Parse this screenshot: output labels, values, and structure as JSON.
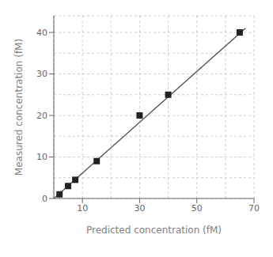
{
  "chart_data": {
    "type": "scatter",
    "xlabel": "Predicted concentration (fM)",
    "ylabel": "Measured concentration (fM)",
    "xlim": [
      0,
      70
    ],
    "ylim": [
      0,
      44
    ],
    "xticks": [
      10,
      30,
      50,
      70
    ],
    "yticks": [
      0,
      10,
      20,
      30,
      40
    ],
    "minor_xticks": [
      0,
      20,
      40,
      60
    ],
    "minor_yticks": [
      5,
      15,
      25,
      35
    ],
    "grid": true,
    "series": [
      {
        "type": "line",
        "x": [
          0,
          67
        ],
        "values": [
          0,
          41
        ],
        "color": "#444444"
      },
      {
        "type": "scatter",
        "x": [
          2,
          5,
          7.5,
          15,
          30,
          40,
          65
        ],
        "values": [
          1,
          3,
          4.5,
          9,
          20,
          25,
          40
        ],
        "color": "#222222",
        "marker": "square"
      }
    ]
  }
}
